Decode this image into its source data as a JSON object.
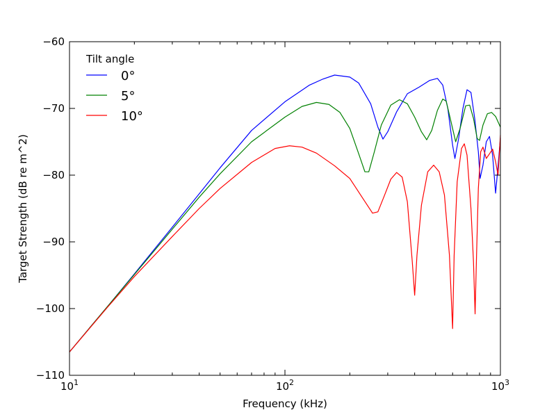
{
  "chart_data": {
    "type": "line",
    "xlabel": "Frequency (kHz)",
    "ylabel": "Target Strength (dB re m^2)",
    "xscale": "log",
    "xlim": [
      10,
      1000
    ],
    "ylim": [
      -110,
      -60
    ],
    "x_ticks": [
      10,
      100,
      1000
    ],
    "x_tick_labels": [
      {
        "base": "10",
        "exp": "1"
      },
      {
        "base": "10",
        "exp": "2"
      },
      {
        "base": "10",
        "exp": "3"
      }
    ],
    "y_ticks": [
      -110,
      -100,
      -90,
      -80,
      -70,
      -60
    ],
    "y_tick_labels": [
      "−110",
      "−100",
      "−90",
      "−80",
      "−70",
      "−60"
    ],
    "grid": false,
    "legend": {
      "title": "Tilt angle",
      "placement": "top-left"
    },
    "series": [
      {
        "name": "0°",
        "color": "#0000ff",
        "points": [
          [
            10,
            -106.5
          ],
          [
            15,
            -99.7
          ],
          [
            20,
            -94.8
          ],
          [
            30,
            -87.8
          ],
          [
            40,
            -82.8
          ],
          [
            50,
            -78.9
          ],
          [
            70,
            -73.3
          ],
          [
            100,
            -69.0
          ],
          [
            130,
            -66.5
          ],
          [
            150,
            -65.6
          ],
          [
            170,
            -65.0
          ],
          [
            200,
            -65.3
          ],
          [
            220,
            -66.2
          ],
          [
            250,
            -69.3
          ],
          [
            270,
            -72.8
          ],
          [
            285,
            -74.6
          ],
          [
            300,
            -73.5
          ],
          [
            330,
            -70.5
          ],
          [
            370,
            -67.8
          ],
          [
            420,
            -66.8
          ],
          [
            470,
            -65.8
          ],
          [
            510,
            -65.5
          ],
          [
            540,
            -66.5
          ],
          [
            570,
            -70.0
          ],
          [
            600,
            -75.5
          ],
          [
            615,
            -77.5
          ],
          [
            640,
            -74.5
          ],
          [
            670,
            -70.0
          ],
          [
            700,
            -67.2
          ],
          [
            730,
            -67.6
          ],
          [
            760,
            -71.5
          ],
          [
            790,
            -76.5
          ],
          [
            805,
            -80.5
          ],
          [
            830,
            -78.5
          ],
          [
            860,
            -75.0
          ],
          [
            890,
            -74.2
          ],
          [
            920,
            -77.0
          ],
          [
            950,
            -82.7
          ],
          [
            970,
            -79.5
          ],
          [
            1000,
            -74.5
          ]
        ]
      },
      {
        "name": "5°",
        "color": "#008000",
        "points": [
          [
            10,
            -106.5
          ],
          [
            15,
            -99.7
          ],
          [
            20,
            -94.9
          ],
          [
            30,
            -88.1
          ],
          [
            40,
            -83.3
          ],
          [
            50,
            -79.8
          ],
          [
            70,
            -75.0
          ],
          [
            100,
            -71.3
          ],
          [
            120,
            -69.7
          ],
          [
            140,
            -69.1
          ],
          [
            160,
            -69.4
          ],
          [
            180,
            -70.6
          ],
          [
            200,
            -73.0
          ],
          [
            220,
            -76.8
          ],
          [
            235,
            -79.5
          ],
          [
            245,
            -79.5
          ],
          [
            260,
            -76.5
          ],
          [
            280,
            -72.5
          ],
          [
            310,
            -69.5
          ],
          [
            340,
            -68.7
          ],
          [
            370,
            -69.3
          ],
          [
            400,
            -71.3
          ],
          [
            430,
            -73.5
          ],
          [
            455,
            -74.7
          ],
          [
            480,
            -73.3
          ],
          [
            510,
            -70.3
          ],
          [
            540,
            -68.6
          ],
          [
            560,
            -68.9
          ],
          [
            590,
            -72.0
          ],
          [
            620,
            -75.0
          ],
          [
            650,
            -73.0
          ],
          [
            690,
            -69.6
          ],
          [
            720,
            -69.5
          ],
          [
            750,
            -71.5
          ],
          [
            780,
            -74.5
          ],
          [
            800,
            -74.8
          ],
          [
            830,
            -72.5
          ],
          [
            870,
            -70.8
          ],
          [
            910,
            -70.6
          ],
          [
            950,
            -71.2
          ],
          [
            1000,
            -72.8
          ]
        ]
      },
      {
        "name": "10°",
        "color": "#ff0000",
        "points": [
          [
            10,
            -106.5
          ],
          [
            15,
            -99.8
          ],
          [
            20,
            -95.2
          ],
          [
            30,
            -89.2
          ],
          [
            40,
            -85.0
          ],
          [
            50,
            -82.0
          ],
          [
            70,
            -78.1
          ],
          [
            90,
            -76.0
          ],
          [
            105,
            -75.6
          ],
          [
            120,
            -75.8
          ],
          [
            140,
            -76.7
          ],
          [
            170,
            -78.6
          ],
          [
            200,
            -80.5
          ],
          [
            230,
            -83.5
          ],
          [
            255,
            -85.7
          ],
          [
            270,
            -85.5
          ],
          [
            290,
            -83.0
          ],
          [
            310,
            -80.6
          ],
          [
            330,
            -79.6
          ],
          [
            350,
            -80.3
          ],
          [
            370,
            -84.0
          ],
          [
            390,
            -93.0
          ],
          [
            400,
            -98.0
          ],
          [
            410,
            -92.0
          ],
          [
            430,
            -84.5
          ],
          [
            460,
            -79.5
          ],
          [
            490,
            -78.5
          ],
          [
            520,
            -79.5
          ],
          [
            550,
            -83.0
          ],
          [
            580,
            -92.0
          ],
          [
            600,
            -103.0
          ],
          [
            610,
            -92.0
          ],
          [
            630,
            -81.0
          ],
          [
            660,
            -76.0
          ],
          [
            680,
            -75.3
          ],
          [
            700,
            -77.0
          ],
          [
            730,
            -85.0
          ],
          [
            750,
            -93.0
          ],
          [
            763,
            -100.8
          ],
          [
            775,
            -92.0
          ],
          [
            790,
            -82.0
          ],
          [
            810,
            -76.5
          ],
          [
            830,
            -75.8
          ],
          [
            860,
            -77.5
          ],
          [
            890,
            -76.8
          ],
          [
            920,
            -76.1
          ],
          [
            950,
            -78.0
          ],
          [
            975,
            -80.0
          ],
          [
            1000,
            -74.0
          ]
        ]
      }
    ]
  }
}
